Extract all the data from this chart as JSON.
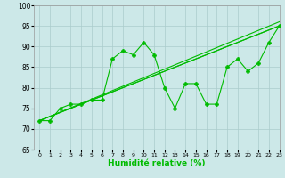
{
  "xlabel": "Humidité relative (%)",
  "xlim": [
    -0.5,
    23
  ],
  "ylim": [
    65,
    100
  ],
  "xticks": [
    0,
    1,
    2,
    3,
    4,
    5,
    6,
    7,
    8,
    9,
    10,
    11,
    12,
    13,
    14,
    15,
    16,
    17,
    18,
    19,
    20,
    21,
    22,
    23
  ],
  "yticks": [
    65,
    70,
    75,
    80,
    85,
    90,
    95,
    100
  ],
  "bg_color": "#cce8e8",
  "line_color": "#00bb00",
  "grid_color": "#aacccc",
  "series1_x": [
    0,
    1,
    2,
    3,
    4,
    5,
    6,
    7,
    8,
    9,
    10,
    11,
    12,
    13,
    14,
    15,
    16,
    17,
    18,
    19,
    20,
    21,
    22,
    23
  ],
  "series1_y": [
    72,
    72,
    75,
    76,
    76,
    77,
    77,
    87,
    89,
    88,
    91,
    88,
    80,
    75,
    81,
    81,
    76,
    76,
    85,
    87,
    84,
    86,
    91,
    95
  ],
  "line1_x": [
    0,
    23
  ],
  "line1_y": [
    72,
    96
  ],
  "line2_x": [
    0,
    23
  ],
  "line2_y": [
    72,
    95
  ],
  "line3_x": [
    0,
    23
  ],
  "line3_y": [
    72,
    95
  ]
}
